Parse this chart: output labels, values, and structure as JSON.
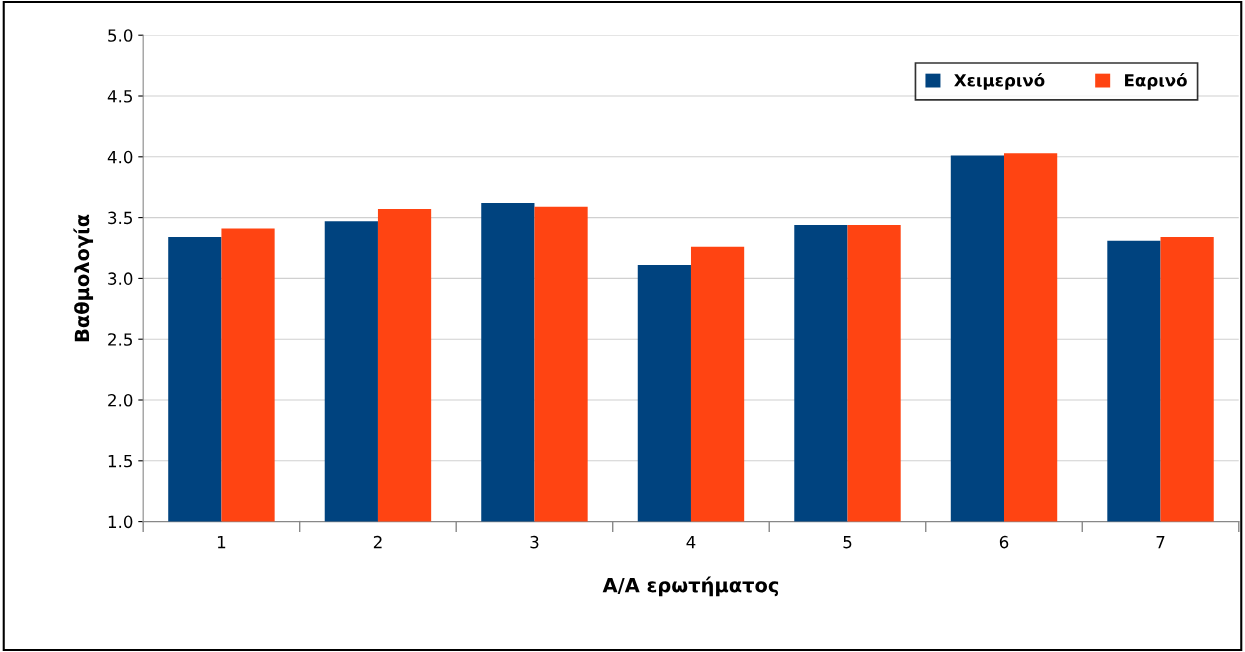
{
  "chart_data": {
    "type": "bar",
    "xlabel": "Α/Α ερωτήματος",
    "ylabel": "Βαθμολογία",
    "categories": [
      "1",
      "2",
      "3",
      "4",
      "5",
      "6",
      "7"
    ],
    "series": [
      {
        "name": "Χειμερινό",
        "color": "#00437f",
        "values": [
          3.34,
          3.47,
          3.62,
          3.11,
          3.44,
          4.01,
          3.31
        ]
      },
      {
        "name": "Εαρινό",
        "color": "#ff4412",
        "values": [
          3.41,
          3.57,
          3.59,
          3.26,
          3.44,
          4.03,
          3.34
        ]
      }
    ],
    "ylim": [
      1.0,
      5.0
    ],
    "yticks": [
      {
        "value": 1.0,
        "label": "1.0"
      },
      {
        "value": 1.5,
        "label": "1.5"
      },
      {
        "value": 2.0,
        "label": "2.0"
      },
      {
        "value": 2.5,
        "label": "2.5"
      },
      {
        "value": 3.0,
        "label": "3.0"
      },
      {
        "value": 3.5,
        "label": "3.5"
      },
      {
        "value": 4.0,
        "label": "4.0"
      },
      {
        "value": 4.5,
        "label": "4.5"
      },
      {
        "value": 5.0,
        "label": "5.0"
      }
    ],
    "grid": "y",
    "legend": "top right"
  }
}
